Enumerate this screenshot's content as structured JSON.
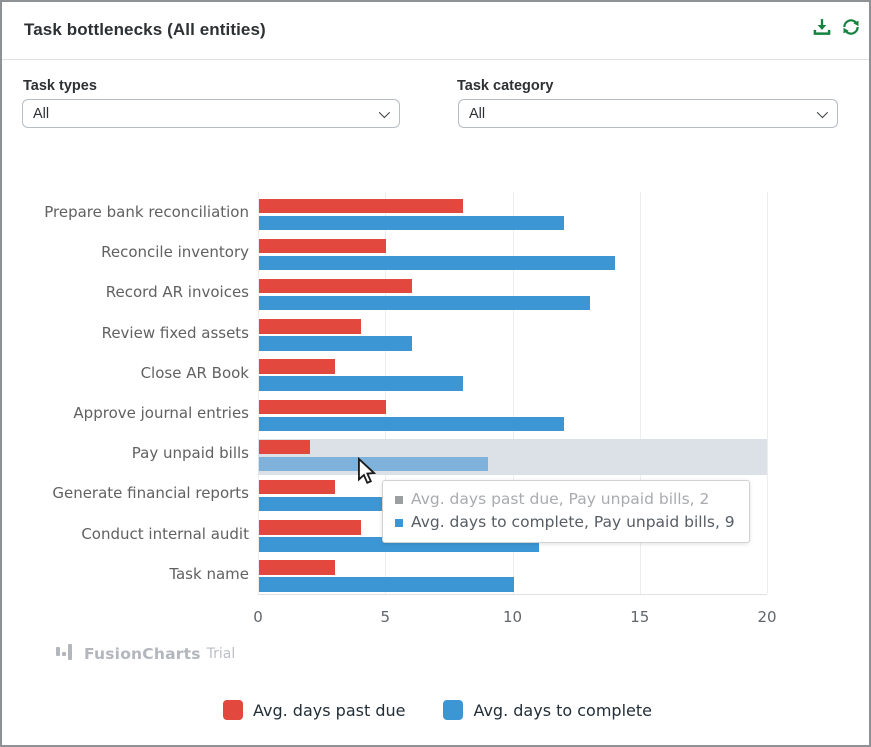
{
  "header": {
    "title": "Task bottlenecks (All entities)",
    "icon_color": "#15833f"
  },
  "filters": {
    "task_types": {
      "label": "Task types",
      "value": "All"
    },
    "task_category": {
      "label": "Task category",
      "value": "All"
    }
  },
  "chart_data": {
    "type": "bar",
    "orientation": "horizontal",
    "categories": [
      "Prepare bank reconciliation",
      "Reconcile inventory",
      "Record AR invoices",
      "Review fixed assets",
      "Close AR Book",
      "Approve journal entries",
      "Pay unpaid bills",
      "Generate financial reports",
      "Conduct internal audit",
      "Task name"
    ],
    "series": [
      {
        "name": "Avg. days past due",
        "color": "#e2483e",
        "values": [
          8,
          5,
          6,
          4,
          3,
          5,
          2,
          3,
          4,
          3
        ]
      },
      {
        "name": "Avg. days to complete",
        "color": "#3c96d4",
        "values": [
          12,
          14,
          13,
          6,
          8,
          12,
          9,
          5,
          11,
          10
        ]
      }
    ],
    "xlim": [
      0,
      20
    ],
    "xticks": [
      0,
      5,
      10,
      15,
      20
    ],
    "grid": true,
    "legend_position": "bottom",
    "hover": {
      "category": "Pay unpaid bills",
      "category_index": 6,
      "hovered_series": "Avg. days to complete",
      "band_color": "#dce1e8",
      "hovered_bar_color": "#7fb2da"
    }
  },
  "tooltip": {
    "lines": [
      {
        "swatch_color": "#9c9ea0",
        "text": "Avg. days past due, Pay unpaid bills, 2",
        "muted": true
      },
      {
        "swatch_color": "#3c96d4",
        "text": "Avg. days to complete, Pay unpaid bills, 9",
        "muted": false
      }
    ]
  },
  "watermark": {
    "brand": "FusionCharts",
    "suffix": "Trial"
  },
  "legend": {
    "items": [
      {
        "label": "Avg. days past due",
        "color": "#e2483e"
      },
      {
        "label": "Avg. days to complete",
        "color": "#3c96d4"
      }
    ]
  }
}
